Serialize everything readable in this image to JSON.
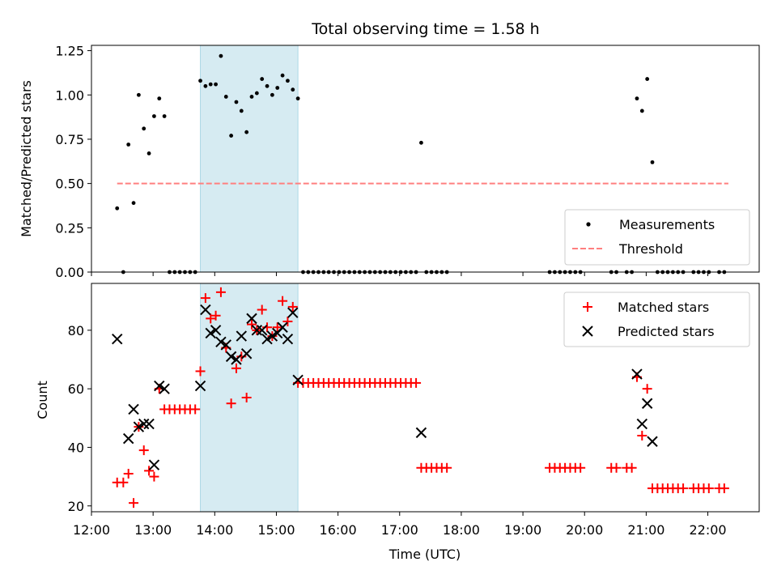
{
  "chart_data": [
    {
      "type": "scatter",
      "title": "Total observing time = 1.58 h",
      "xlabel": "",
      "ylabel": "Matched/Predicted stars",
      "xlim": [
        "12:00",
        "22:50"
      ],
      "ylim": [
        0,
        1.28
      ],
      "yticks": [
        "0.00",
        "0.25",
        "0.50",
        "0.75",
        "1.00",
        "1.25"
      ],
      "grid": false,
      "legend_position": "lower-right",
      "shaded_interval": [
        "13:46",
        "15:21"
      ],
      "colors": {
        "measurements": "#000000",
        "threshold": "#ff7f7f",
        "shade": "#add8e6"
      },
      "series": [
        {
          "name": "Measurements",
          "points": [
            [
              "12:25",
              0.36
            ],
            [
              "12:31",
              0.0
            ],
            [
              "12:36",
              0.72
            ],
            [
              "12:41",
              0.39
            ],
            [
              "12:46",
              1.0
            ],
            [
              "12:51",
              0.81
            ],
            [
              "12:56",
              0.67
            ],
            [
              "13:01",
              0.88
            ],
            [
              "13:06",
              0.98
            ],
            [
              "13:11",
              0.88
            ],
            [
              "13:16",
              0.0
            ],
            [
              "13:21",
              0.0
            ],
            [
              "13:26",
              0.0
            ],
            [
              "13:31",
              0.0
            ],
            [
              "13:36",
              0.0
            ],
            [
              "13:41",
              0.0
            ],
            [
              "13:46",
              1.08
            ],
            [
              "13:51",
              1.05
            ],
            [
              "13:56",
              1.06
            ],
            [
              "14:01",
              1.06
            ],
            [
              "14:06",
              1.22
            ],
            [
              "14:11",
              0.99
            ],
            [
              "14:16",
              0.77
            ],
            [
              "14:21",
              0.96
            ],
            [
              "14:26",
              0.91
            ],
            [
              "14:31",
              0.79
            ],
            [
              "14:36",
              0.99
            ],
            [
              "14:41",
              1.01
            ],
            [
              "14:46",
              1.09
            ],
            [
              "14:51",
              1.05
            ],
            [
              "14:56",
              1.0
            ],
            [
              "15:01",
              1.04
            ],
            [
              "15:06",
              1.11
            ],
            [
              "15:11",
              1.08
            ],
            [
              "15:16",
              1.03
            ],
            [
              "15:21",
              0.98
            ],
            [
              "15:26",
              0.0
            ],
            [
              "15:31",
              0.0
            ],
            [
              "15:36",
              0.0
            ],
            [
              "15:41",
              0.0
            ],
            [
              "15:46",
              0.0
            ],
            [
              "15:51",
              0.0
            ],
            [
              "15:56",
              0.0
            ],
            [
              "16:01",
              0.0
            ],
            [
              "16:06",
              0.0
            ],
            [
              "16:11",
              0.0
            ],
            [
              "16:16",
              0.0
            ],
            [
              "16:21",
              0.0
            ],
            [
              "16:26",
              0.0
            ],
            [
              "16:31",
              0.0
            ],
            [
              "16:36",
              0.0
            ],
            [
              "16:41",
              0.0
            ],
            [
              "16:46",
              0.0
            ],
            [
              "16:51",
              0.0
            ],
            [
              "16:56",
              0.0
            ],
            [
              "17:01",
              0.0
            ],
            [
              "17:06",
              0.0
            ],
            [
              "17:11",
              0.0
            ],
            [
              "17:16",
              0.0
            ],
            [
              "17:21",
              0.73
            ],
            [
              "17:26",
              0.0
            ],
            [
              "17:31",
              0.0
            ],
            [
              "17:36",
              0.0
            ],
            [
              "17:41",
              0.0
            ],
            [
              "17:46",
              0.0
            ],
            [
              "19:26",
              0.0
            ],
            [
              "19:31",
              0.0
            ],
            [
              "19:36",
              0.0
            ],
            [
              "19:41",
              0.0
            ],
            [
              "19:46",
              0.0
            ],
            [
              "19:51",
              0.0
            ],
            [
              "19:56",
              0.0
            ],
            [
              "20:26",
              0.0
            ],
            [
              "20:31",
              0.0
            ],
            [
              "20:41",
              0.0
            ],
            [
              "20:46",
              0.0
            ],
            [
              "20:51",
              0.98
            ],
            [
              "20:56",
              0.91
            ],
            [
              "21:01",
              1.09
            ],
            [
              "21:06",
              0.62
            ],
            [
              "21:11",
              0.0
            ],
            [
              "21:16",
              0.0
            ],
            [
              "21:21",
              0.0
            ],
            [
              "21:26",
              0.0
            ],
            [
              "21:31",
              0.0
            ],
            [
              "21:36",
              0.0
            ],
            [
              "21:46",
              0.0
            ],
            [
              "21:51",
              0.0
            ],
            [
              "21:56",
              0.0
            ],
            [
              "22:01",
              0.0
            ],
            [
              "22:11",
              0.0
            ],
            [
              "22:16",
              0.0
            ]
          ]
        },
        {
          "name": "Threshold",
          "points": [
            [
              "12:25",
              0.5
            ],
            [
              "22:20",
              0.5
            ]
          ]
        }
      ]
    },
    {
      "type": "scatter",
      "title": "",
      "xlabel": "Time (UTC)",
      "ylabel": "Count",
      "xlim": [
        "12:00",
        "22:50"
      ],
      "ylim": [
        18,
        96
      ],
      "xticks": [
        "12:00",
        "13:00",
        "14:00",
        "15:00",
        "16:00",
        "17:00",
        "18:00",
        "19:00",
        "20:00",
        "21:00",
        "22:00"
      ],
      "yticks": [
        "20",
        "40",
        "60",
        "80"
      ],
      "grid": false,
      "legend_position": "upper-right",
      "shaded_interval": [
        "13:46",
        "15:21"
      ],
      "colors": {
        "matched": "#ff0000",
        "predicted": "#000000",
        "shade": "#add8e6"
      },
      "series": [
        {
          "name": "Matched stars",
          "points": [
            [
              "12:25",
              28
            ],
            [
              "12:31",
              28
            ],
            [
              "12:36",
              31
            ],
            [
              "12:41",
              21
            ],
            [
              "12:46",
              47
            ],
            [
              "12:51",
              39
            ],
            [
              "12:56",
              32
            ],
            [
              "13:01",
              30
            ],
            [
              "13:06",
              60
            ],
            [
              "13:11",
              53
            ],
            [
              "13:16",
              53
            ],
            [
              "13:21",
              53
            ],
            [
              "13:26",
              53
            ],
            [
              "13:31",
              53
            ],
            [
              "13:36",
              53
            ],
            [
              "13:41",
              53
            ],
            [
              "13:46",
              66
            ],
            [
              "13:51",
              91
            ],
            [
              "13:56",
              84
            ],
            [
              "14:01",
              85
            ],
            [
              "14:06",
              93
            ],
            [
              "14:11",
              74
            ],
            [
              "14:16",
              55
            ],
            [
              "14:21",
              67
            ],
            [
              "14:26",
              71
            ],
            [
              "14:31",
              57
            ],
            [
              "14:36",
              82
            ],
            [
              "14:41",
              80
            ],
            [
              "14:46",
              87
            ],
            [
              "14:51",
              81
            ],
            [
              "14:56",
              78
            ],
            [
              "15:01",
              81
            ],
            [
              "15:06",
              90
            ],
            [
              "15:11",
              83
            ],
            [
              "15:16",
              88
            ],
            [
              "15:21",
              62
            ],
            [
              "15:26",
              62
            ],
            [
              "15:31",
              62
            ],
            [
              "15:36",
              62
            ],
            [
              "15:41",
              62
            ],
            [
              "15:46",
              62
            ],
            [
              "15:51",
              62
            ],
            [
              "15:56",
              62
            ],
            [
              "16:01",
              62
            ],
            [
              "16:06",
              62
            ],
            [
              "16:11",
              62
            ],
            [
              "16:16",
              62
            ],
            [
              "16:21",
              62
            ],
            [
              "16:26",
              62
            ],
            [
              "16:31",
              62
            ],
            [
              "16:36",
              62
            ],
            [
              "16:41",
              62
            ],
            [
              "16:46",
              62
            ],
            [
              "16:51",
              62
            ],
            [
              "16:56",
              62
            ],
            [
              "17:01",
              62
            ],
            [
              "17:06",
              62
            ],
            [
              "17:11",
              62
            ],
            [
              "17:16",
              62
            ],
            [
              "17:21",
              33
            ],
            [
              "17:26",
              33
            ],
            [
              "17:31",
              33
            ],
            [
              "17:36",
              33
            ],
            [
              "17:41",
              33
            ],
            [
              "17:46",
              33
            ],
            [
              "19:26",
              33
            ],
            [
              "19:31",
              33
            ],
            [
              "19:36",
              33
            ],
            [
              "19:41",
              33
            ],
            [
              "19:46",
              33
            ],
            [
              "19:51",
              33
            ],
            [
              "19:56",
              33
            ],
            [
              "20:26",
              33
            ],
            [
              "20:31",
              33
            ],
            [
              "20:41",
              33
            ],
            [
              "20:46",
              33
            ],
            [
              "20:51",
              64
            ],
            [
              "20:56",
              44
            ],
            [
              "21:01",
              60
            ],
            [
              "21:06",
              26
            ],
            [
              "21:11",
              26
            ],
            [
              "21:16",
              26
            ],
            [
              "21:21",
              26
            ],
            [
              "21:26",
              26
            ],
            [
              "21:31",
              26
            ],
            [
              "21:36",
              26
            ],
            [
              "21:46",
              26
            ],
            [
              "21:51",
              26
            ],
            [
              "21:56",
              26
            ],
            [
              "22:01",
              26
            ],
            [
              "22:11",
              26
            ],
            [
              "22:16",
              26
            ]
          ]
        },
        {
          "name": "Predicted stars",
          "points": [
            [
              "12:25",
              77
            ],
            [
              "12:36",
              43
            ],
            [
              "12:41",
              53
            ],
            [
              "12:46",
              47
            ],
            [
              "12:51",
              48
            ],
            [
              "12:56",
              48
            ],
            [
              "13:01",
              34
            ],
            [
              "13:06",
              61
            ],
            [
              "13:11",
              60
            ],
            [
              "13:46",
              61
            ],
            [
              "13:51",
              87
            ],
            [
              "13:56",
              79
            ],
            [
              "14:01",
              80
            ],
            [
              "14:06",
              76
            ],
            [
              "14:11",
              75
            ],
            [
              "14:16",
              71
            ],
            [
              "14:21",
              70
            ],
            [
              "14:26",
              78
            ],
            [
              "14:31",
              72
            ],
            [
              "14:36",
              84
            ],
            [
              "14:41",
              80
            ],
            [
              "14:46",
              80
            ],
            [
              "14:51",
              77
            ],
            [
              "14:56",
              78
            ],
            [
              "15:01",
              79
            ],
            [
              "15:06",
              81
            ],
            [
              "15:11",
              77
            ],
            [
              "15:16",
              86
            ],
            [
              "15:21",
              63
            ],
            [
              "17:21",
              45
            ],
            [
              "20:51",
              65
            ],
            [
              "20:56",
              48
            ],
            [
              "21:01",
              55
            ],
            [
              "21:06",
              42
            ]
          ]
        }
      ]
    }
  ]
}
